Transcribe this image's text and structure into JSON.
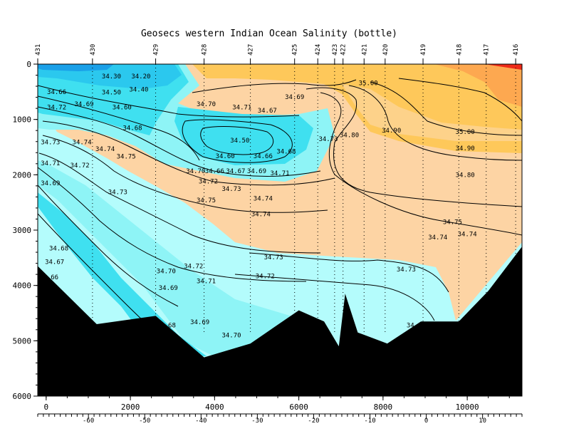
{
  "chart_data": {
    "type": "heatmap",
    "title": "Geosecs western Indian Ocean Salinity (bottle)",
    "xlabel": "",
    "ylabel": "",
    "xlim": [
      -200,
      11300
    ],
    "ylim": [
      0,
      6000
    ],
    "y_inverted": true,
    "x_ticks": [
      0,
      2000,
      4000,
      6000,
      8000,
      10000
    ],
    "y_ticks": [
      0,
      1000,
      2000,
      3000,
      4000,
      5000,
      6000
    ],
    "lat_ticks": [
      -60,
      -50,
      -40,
      -30,
      -20,
      -10,
      0,
      10
    ],
    "lat_axis_range": [
      -69,
      17
    ],
    "stations": [
      {
        "name": "431",
        "x": -200
      },
      {
        "name": "430",
        "x": 1100
      },
      {
        "name": "429",
        "x": 2600
      },
      {
        "name": "428",
        "x": 3750
      },
      {
        "name": "427",
        "x": 4850
      },
      {
        "name": "425",
        "x": 5900
      },
      {
        "name": "424",
        "x": 6450
      },
      {
        "name": "423",
        "x": 6850
      },
      {
        "name": "422",
        "x": 7050
      },
      {
        "name": "421",
        "x": 7550
      },
      {
        "name": "420",
        "x": 8050
      },
      {
        "name": "419",
        "x": 8950
      },
      {
        "name": "418",
        "x": 9800
      },
      {
        "name": "417",
        "x": 10450
      },
      {
        "name": "416",
        "x": 11150
      }
    ],
    "colors": {
      "band_1": "#1aa0e8",
      "band_2": "#2bc8ee",
      "band_3": "#3fe0f0",
      "band_4": "#8ef4f6",
      "band_5": "#b4fcfc",
      "band_6": "#fdd4a4",
      "band_7": "#fdd28a",
      "band_8": "#fec85a",
      "band_9": "#fda850",
      "band_10": "#ee2a18",
      "bottom": "#000000"
    },
    "bottom_profile": [
      [
        -200,
        3650
      ],
      [
        1200,
        4700
      ],
      [
        2600,
        4550
      ],
      [
        3750,
        5300
      ],
      [
        4850,
        5050
      ],
      [
        6000,
        4450
      ],
      [
        6600,
        4650
      ],
      [
        6950,
        5100
      ],
      [
        7100,
        4150
      ],
      [
        7400,
        4850
      ],
      [
        8100,
        5050
      ],
      [
        8900,
        4650
      ],
      [
        9800,
        4650
      ],
      [
        10500,
        4100
      ],
      [
        11300,
        3300
      ]
    ],
    "contour_labels": [
      {
        "text": "34.30",
        "x": 1550,
        "depth": 220
      },
      {
        "text": "34.20",
        "x": 2250,
        "depth": 220
      },
      {
        "text": "34.40",
        "x": 2200,
        "depth": 460
      },
      {
        "text": "34.50",
        "x": 1550,
        "depth": 510
      },
      {
        "text": "34.66",
        "x": 250,
        "depth": 500
      },
      {
        "text": "34.69",
        "x": 900,
        "depth": 720
      },
      {
        "text": "34.72",
        "x": 250,
        "depth": 780
      },
      {
        "text": "34.60",
        "x": 1800,
        "depth": 780
      },
      {
        "text": "34.68",
        "x": 2050,
        "depth": 1150
      },
      {
        "text": "34.73",
        "x": 100,
        "depth": 1410
      },
      {
        "text": "34.74",
        "x": 850,
        "depth": 1410
      },
      {
        "text": "34.74",
        "x": 1400,
        "depth": 1530
      },
      {
        "text": "34.75",
        "x": 1900,
        "depth": 1670
      },
      {
        "text": "34.71",
        "x": 100,
        "depth": 1790
      },
      {
        "text": "34.72",
        "x": 800,
        "depth": 1830
      },
      {
        "text": "34.69",
        "x": 100,
        "depth": 2150
      },
      {
        "text": "34.73",
        "x": 1700,
        "depth": 2310
      },
      {
        "text": "34.70",
        "x": 3800,
        "depth": 720
      },
      {
        "text": "34.71",
        "x": 4650,
        "depth": 780
      },
      {
        "text": "34.67",
        "x": 5250,
        "depth": 840
      },
      {
        "text": "34.69",
        "x": 5900,
        "depth": 590
      },
      {
        "text": "35.00",
        "x": 7650,
        "depth": 340
      },
      {
        "text": "34.50",
        "x": 4600,
        "depth": 1380
      },
      {
        "text": "34.60",
        "x": 4250,
        "depth": 1660
      },
      {
        "text": "34.66",
        "x": 5150,
        "depth": 1660
      },
      {
        "text": "34.68",
        "x": 5700,
        "depth": 1580
      },
      {
        "text": "34.70",
        "x": 3550,
        "depth": 1930
      },
      {
        "text": "34.66",
        "x": 4000,
        "depth": 1930
      },
      {
        "text": "34.67",
        "x": 4500,
        "depth": 1930
      },
      {
        "text": "34.69",
        "x": 5000,
        "depth": 1930
      },
      {
        "text": "34.71",
        "x": 5550,
        "depth": 1970
      },
      {
        "text": "34.72",
        "x": 3850,
        "depth": 2120
      },
      {
        "text": "34.73",
        "x": 4400,
        "depth": 2250
      },
      {
        "text": "34.74",
        "x": 5150,
        "depth": 2430
      },
      {
        "text": "34.75",
        "x": 3800,
        "depth": 2460
      },
      {
        "text": "34.74",
        "x": 5100,
        "depth": 2710
      },
      {
        "text": "34.73",
        "x": 6700,
        "depth": 1350
      },
      {
        "text": "34.80",
        "x": 7200,
        "depth": 1280
      },
      {
        "text": "34.90",
        "x": 8200,
        "depth": 1200
      },
      {
        "text": "35.00",
        "x": 9950,
        "depth": 1220
      },
      {
        "text": "34.90",
        "x": 9950,
        "depth": 1520
      },
      {
        "text": "34.80",
        "x": 9950,
        "depth": 2000
      },
      {
        "text": "34.75",
        "x": 9650,
        "depth": 2850
      },
      {
        "text": "34.74",
        "x": 9300,
        "depth": 3130
      },
      {
        "text": "34.74",
        "x": 10000,
        "depth": 3070
      },
      {
        "text": "34.73",
        "x": 5400,
        "depth": 3490
      },
      {
        "text": "34.72",
        "x": 5200,
        "depth": 3830
      },
      {
        "text": "34.73",
        "x": 8550,
        "depth": 3710
      },
      {
        "text": "34.68",
        "x": 300,
        "depth": 3330
      },
      {
        "text": "34.67",
        "x": 200,
        "depth": 3570
      },
      {
        "text": "66",
        "x": 200,
        "depth": 3850
      },
      {
        "text": "34.70",
        "x": 2850,
        "depth": 3740
      },
      {
        "text": "34.72",
        "x": 3500,
        "depth": 3650
      },
      {
        "text": "34.71",
        "x": 3800,
        "depth": 3920
      },
      {
        "text": "34.69",
        "x": 2900,
        "depth": 4040
      },
      {
        "text": "34.69",
        "x": 3650,
        "depth": 4660
      },
      {
        "text": "34.68",
        "x": 2850,
        "depth": 4720
      },
      {
        "text": "34.70",
        "x": 4400,
        "depth": 4900
      },
      {
        "text": "34",
        "x": 8650,
        "depth": 4720
      }
    ]
  }
}
